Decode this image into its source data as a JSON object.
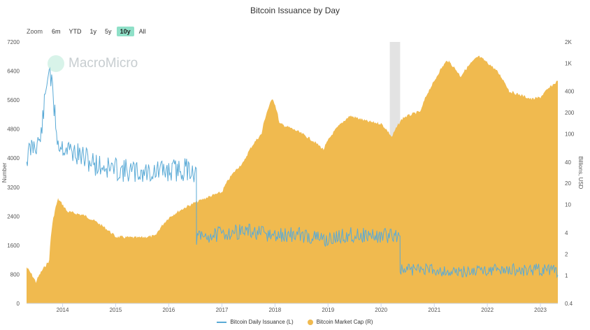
{
  "title": "Bitcoin Issuance by Day",
  "zoom": {
    "label": "Zoom",
    "buttons": [
      "6m",
      "YTD",
      "1y",
      "5y",
      "10y",
      "All"
    ],
    "active": "10y"
  },
  "watermark": "MacroMicro",
  "legend": {
    "issuance": "Bitcoin Daily Issuance (L)",
    "marketcap": "Bitcoin Market Cap (R)"
  },
  "colors": {
    "issuance": "#5aaad6",
    "marketcap": "#f0ba4f",
    "highlight": "#e3e3e3"
  },
  "chart_data": {
    "type": "line",
    "x_axis": {
      "type": "date",
      "ticks": [
        "2014",
        "2015",
        "2016",
        "2017",
        "2018",
        "2019",
        "2020",
        "2021",
        "2022",
        "2023"
      ],
      "range": [
        "2013-04-28",
        "2023-05-01"
      ]
    },
    "y_left": {
      "label": "Number",
      "range": [
        0,
        7200
      ],
      "ticks": [
        "0",
        "800",
        "1600",
        "2400",
        "3200",
        "4000",
        "4800",
        "5600",
        "6400",
        "7200"
      ]
    },
    "y_right": {
      "label": "Billions, USD",
      "scale": "log",
      "range": [
        0.4,
        2000
      ],
      "ticks": [
        "0.4",
        "1",
        "2",
        "4",
        "10",
        "20",
        "40",
        "100",
        "200",
        "400",
        "1K",
        "2K"
      ]
    },
    "highlight_band": [
      "2020-03-01",
      "2020-05-11"
    ],
    "series": [
      {
        "name": "Bitcoin Daily Issuance (L)",
        "type": "line",
        "axis": "left",
        "points": [
          [
            "2013-04-28",
            4000
          ],
          [
            "2013-06-01",
            4300
          ],
          [
            "2013-08-01",
            4500
          ],
          [
            "2013-10-01",
            6600
          ],
          [
            "2013-12-01",
            4400
          ],
          [
            "2014-03-01",
            4200
          ],
          [
            "2014-06-01",
            4000
          ],
          [
            "2014-09-01",
            3800
          ],
          [
            "2015-01-01",
            3700
          ],
          [
            "2015-06-01",
            3600
          ],
          [
            "2016-01-01",
            3650
          ],
          [
            "2016-06-01",
            3700
          ],
          [
            "2016-07-09",
            3600
          ],
          [
            "2016-07-10",
            1800
          ],
          [
            "2016-12-01",
            1900
          ],
          [
            "2017-06-01",
            2000
          ],
          [
            "2018-01-01",
            1850
          ],
          [
            "2018-06-01",
            1900
          ],
          [
            "2019-01-01",
            1750
          ],
          [
            "2019-06-01",
            1900
          ],
          [
            "2020-01-01",
            1850
          ],
          [
            "2020-05-10",
            1900
          ],
          [
            "2020-05-11",
            900
          ],
          [
            "2020-09-01",
            950
          ],
          [
            "2021-01-01",
            940
          ],
          [
            "2021-06-01",
            850
          ],
          [
            "2022-01-01",
            940
          ],
          [
            "2022-06-01",
            920
          ],
          [
            "2023-01-01",
            930
          ],
          [
            "2023-05-01",
            880
          ]
        ]
      },
      {
        "name": "Bitcoin Market Cap (R)",
        "type": "area",
        "axis": "right",
        "points": [
          [
            "2013-04-28",
            1.3
          ],
          [
            "2013-07-01",
            0.8
          ],
          [
            "2013-10-01",
            1.6
          ],
          [
            "2013-12-01",
            12
          ],
          [
            "2014-02-01",
            8
          ],
          [
            "2014-06-01",
            7
          ],
          [
            "2014-10-01",
            5
          ],
          [
            "2015-01-01",
            3.5
          ],
          [
            "2015-06-01",
            3.4
          ],
          [
            "2015-10-01",
            3.6
          ],
          [
            "2016-01-01",
            6.5
          ],
          [
            "2016-06-01",
            10
          ],
          [
            "2017-01-01",
            15
          ],
          [
            "2017-06-01",
            40
          ],
          [
            "2017-10-01",
            100
          ],
          [
            "2017-12-17",
            320
          ],
          [
            "2018-02-01",
            140
          ],
          [
            "2018-06-01",
            110
          ],
          [
            "2018-12-01",
            60
          ],
          [
            "2019-06-01",
            180
          ],
          [
            "2019-10-01",
            150
          ],
          [
            "2020-01-01",
            140
          ],
          [
            "2020-03-15",
            90
          ],
          [
            "2020-06-01",
            170
          ],
          [
            "2020-10-01",
            210
          ],
          [
            "2021-01-01",
            550
          ],
          [
            "2021-04-01",
            1100
          ],
          [
            "2021-07-01",
            650
          ],
          [
            "2021-11-01",
            1250
          ],
          [
            "2022-03-01",
            800
          ],
          [
            "2022-06-01",
            400
          ],
          [
            "2022-11-01",
            310
          ],
          [
            "2023-01-01",
            330
          ],
          [
            "2023-05-01",
            560
          ]
        ]
      }
    ]
  }
}
